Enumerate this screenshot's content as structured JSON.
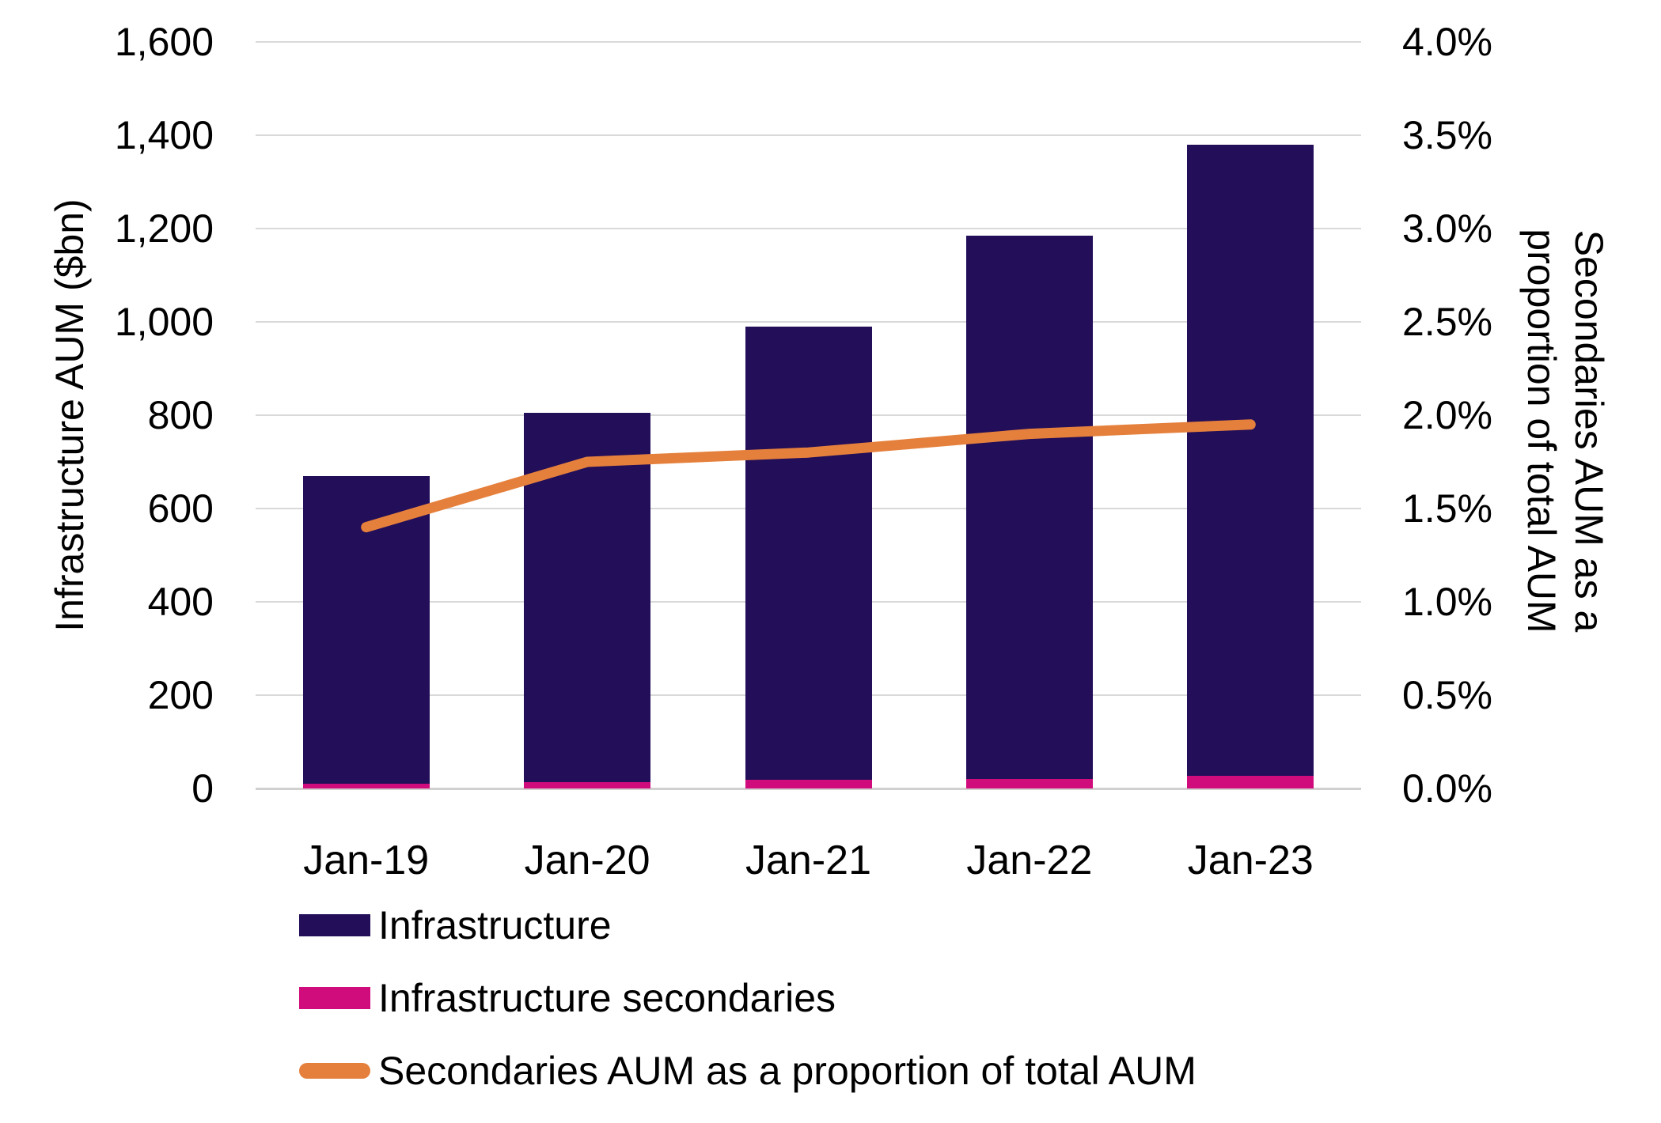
{
  "chart_data": {
    "type": "bar",
    "subtype": "combo-bar-line-dual-axis",
    "categories": [
      "Jan-19",
      "Jan-20",
      "Jan-21",
      "Jan-22",
      "Jan-23"
    ],
    "series": [
      {
        "name": "Infrastructure",
        "type": "bar",
        "axis": "left",
        "color": "#220E59",
        "values": [
          670,
          805,
          990,
          1185,
          1380
        ]
      },
      {
        "name": "Infrastructure secondaries",
        "type": "bar",
        "axis": "left",
        "color": "#D00C7C",
        "note": "drawn at the base of each bar, overlaying the Infrastructure bar",
        "values": [
          10,
          14,
          18,
          20,
          27
        ]
      },
      {
        "name": "Secondaries AUM as a proportion of total AUM",
        "type": "line",
        "axis": "right",
        "color": "#E5803C",
        "values": [
          1.4,
          1.75,
          1.8,
          1.9,
          1.95
        ]
      }
    ],
    "left_axis": {
      "title": "Infrastructure AUM ($bn)",
      "min": 0,
      "max": 1600,
      "step": 200,
      "ticks": [
        "1,600",
        "1,400",
        "1,200",
        "1,000",
        "800",
        "600",
        "400",
        "200",
        "0"
      ]
    },
    "right_axis": {
      "title_line1": "Secondaries AUM as a",
      "title_line2": "proportion of total AUM",
      "min": 0,
      "max": 4,
      "step": 0.5,
      "ticks": [
        "4.0%",
        "3.5%",
        "3.0%",
        "2.5%",
        "2.0%",
        "1.5%",
        "1.0%",
        "0.5%",
        "0.0%"
      ]
    },
    "grid": true,
    "legend_position": "bottom-left"
  },
  "legend": {
    "items": [
      {
        "label": "Infrastructure",
        "marker": "square",
        "color": "#220E59"
      },
      {
        "label": "Infrastructure secondaries",
        "marker": "square",
        "color": "#D00C7C"
      },
      {
        "label": "Secondaries AUM as a proportion of total AUM",
        "marker": "line",
        "color": "#E5803C"
      }
    ]
  },
  "colors": {
    "background": "#ffffff",
    "gridline": "#d9d9d9",
    "baseline": "#d2cfcf",
    "text": "#000000"
  }
}
